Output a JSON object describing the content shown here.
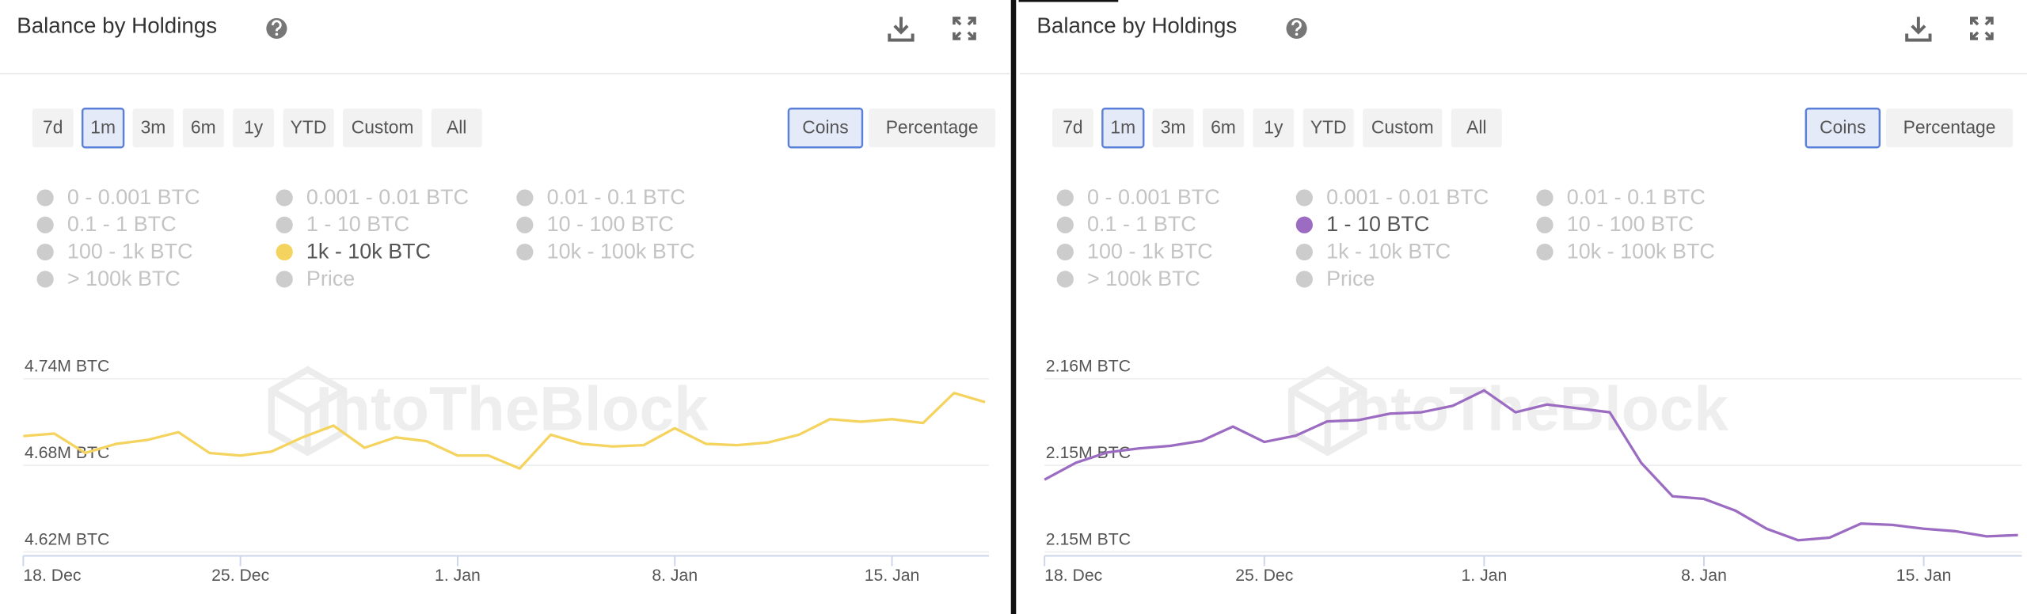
{
  "chart_data": [
    {
      "type": "line",
      "title": "Balance by Holdings",
      "watermark": "IntoTheBlock",
      "range_buttons": [
        {
          "label": "7d"
        },
        {
          "label": "1m",
          "active": true
        },
        {
          "label": "3m"
        },
        {
          "label": "6m"
        },
        {
          "label": "1y"
        },
        {
          "label": "YTD"
        },
        {
          "label": "Custom"
        },
        {
          "label": "All"
        }
      ],
      "unit_buttons": [
        {
          "label": "Coins",
          "active": true
        },
        {
          "label": "Percentage"
        }
      ],
      "legend": [
        "0 - 0.001 BTC",
        "0.001 - 0.01 BTC",
        "0.01 - 0.1 BTC",
        "0.1 - 1 BTC",
        "1 - 10 BTC",
        "10 - 100 BTC",
        "100 - 1k BTC",
        "1k - 10k BTC",
        "10k - 100k BTC",
        "> 100k BTC",
        "Price"
      ],
      "legend_inactive_color": "#cccccc",
      "x": [
        0,
        1,
        2,
        3,
        4,
        5,
        6,
        7,
        8,
        9,
        10,
        11,
        12,
        13,
        14,
        15,
        16,
        17,
        18,
        19,
        20,
        21,
        22,
        23,
        24,
        25,
        26,
        27,
        28,
        29,
        30,
        31
      ],
      "xlim": [
        0,
        31
      ],
      "xticks": [
        {
          "value": 0,
          "label": "18. Dec"
        },
        {
          "value": 7,
          "label": "25. Dec"
        },
        {
          "value": 14,
          "label": "1. Jan"
        },
        {
          "value": 21,
          "label": "8. Jan"
        },
        {
          "value": 28,
          "label": "15. Jan"
        }
      ],
      "ylim": [
        4620000,
        4740000
      ],
      "yticks": [
        {
          "value": 4620000,
          "label": "4.62M BTC"
        },
        {
          "value": 4680000,
          "label": "4.68M BTC"
        },
        {
          "value": 4740000,
          "label": "4.74M BTC"
        }
      ],
      "grid": true,
      "series": [
        {
          "name": "1k - 10k BTC",
          "color": "#f4d35e",
          "values": [
            4700300,
            4702000,
            4688600,
            4694900,
            4697600,
            4703000,
            4688600,
            4686800,
            4689500,
            4699400,
            4707500,
            4692200,
            4699400,
            4696700,
            4686800,
            4686800,
            4677800,
            4701200,
            4694900,
            4693100,
            4694000,
            4705700,
            4694900,
            4694000,
            4695800,
            4701200,
            4712000,
            4710200,
            4712000,
            4709300,
            4730100,
            4723800
          ]
        }
      ]
    },
    {
      "type": "line",
      "title": "Balance by Holdings",
      "watermark": "IntoTheBlock",
      "range_buttons": [
        {
          "label": "7d"
        },
        {
          "label": "1m",
          "active": true
        },
        {
          "label": "3m"
        },
        {
          "label": "6m"
        },
        {
          "label": "1y"
        },
        {
          "label": "YTD"
        },
        {
          "label": "Custom"
        },
        {
          "label": "All"
        }
      ],
      "unit_buttons": [
        {
          "label": "Coins",
          "active": true
        },
        {
          "label": "Percentage"
        }
      ],
      "legend": [
        "0 - 0.001 BTC",
        "0.001 - 0.01 BTC",
        "0.01 - 0.1 BTC",
        "0.1 - 1 BTC",
        "1 - 10 BTC",
        "10 - 100 BTC",
        "100 - 1k BTC",
        "1k - 10k BTC",
        "10k - 100k BTC",
        "> 100k BTC",
        "Price"
      ],
      "legend_inactive_color": "#cccccc",
      "x": [
        0,
        1,
        2,
        3,
        4,
        5,
        6,
        7,
        8,
        9,
        10,
        11,
        12,
        13,
        14,
        15,
        16,
        17,
        18,
        19,
        20,
        21,
        22,
        23,
        24,
        25,
        26,
        27,
        28,
        29,
        30,
        31
      ],
      "xlim": [
        0,
        31
      ],
      "xticks": [
        {
          "value": 0,
          "label": "18. Dec"
        },
        {
          "value": 7,
          "label": "25. Dec"
        },
        {
          "value": 14,
          "label": "1. Jan"
        },
        {
          "value": 21,
          "label": "8. Jan"
        },
        {
          "value": 28,
          "label": "15. Jan"
        }
      ],
      "ylim": [
        2150000,
        2158000
      ],
      "yticks": [
        {
          "value": 2150000,
          "label": "2.15M BTC"
        },
        {
          "value": 2154000,
          "label": "2.15M BTC"
        },
        {
          "value": 2158000,
          "label": "2.16M BTC"
        }
      ],
      "grid": true,
      "series": [
        {
          "name": "1 - 10 BTC",
          "color": "#9b6cc1",
          "values": [
            2153340,
            2154120,
            2154600,
            2154780,
            2154900,
            2155130,
            2155790,
            2155080,
            2155370,
            2156030,
            2156090,
            2156390,
            2156450,
            2156750,
            2157460,
            2156450,
            2156810,
            2156630,
            2156450,
            2154120,
            2152570,
            2152450,
            2151910,
            2151070,
            2150540,
            2150660,
            2151310,
            2151250,
            2151070,
            2150960,
            2150720,
            2150780
          ]
        }
      ]
    }
  ]
}
